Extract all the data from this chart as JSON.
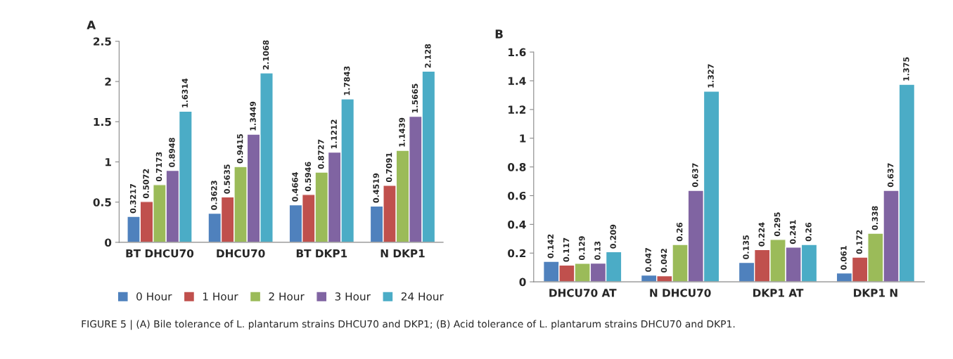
{
  "chart_data": [
    {
      "type": "bar",
      "title": "A",
      "categories": [
        "BT DHCU70",
        "DHCU70",
        "BT DKP1",
        "N DKP1"
      ],
      "series": [
        {
          "name": "0 Hour",
          "color": "#4f81bd",
          "values": [
            0.3217,
            0.3623,
            0.4664,
            0.4519
          ]
        },
        {
          "name": "1 Hour",
          "color": "#c0504d",
          "values": [
            0.5072,
            0.5635,
            0.5946,
            0.7091
          ]
        },
        {
          "name": "2 Hour",
          "color": "#9bbb59",
          "values": [
            0.7173,
            0.9415,
            0.8727,
            1.1439
          ]
        },
        {
          "name": "3 Hour",
          "color": "#8064a2",
          "values": [
            0.8948,
            1.3449,
            1.1212,
            1.5665
          ]
        },
        {
          "name": "24 Hour",
          "color": "#4bacc6",
          "values": [
            1.6314,
            2.1068,
            1.7843,
            2.128
          ]
        }
      ],
      "ylim": [
        0,
        2.5
      ],
      "yticks": [
        0,
        0.5,
        1,
        1.5,
        2,
        2.5
      ],
      "data_labels": true,
      "legend": "bottom",
      "grid": false,
      "annotations": [
        "FIGURE 5 | (A) Bile tolerance of L. plantarum strains DHCU70 and DKP1; (B) Acid tolerance of L. plantarum strains DHCU70 and DKP1."
      ]
    },
    {
      "type": "bar",
      "title": "B",
      "categories": [
        "DHCU70 AT",
        "N DHCU70",
        "DKP1 AT",
        "DKP1 N"
      ],
      "series": [
        {
          "color": "#4f81bd",
          "values": [
            0.142,
            0.047,
            0.135,
            0.061
          ]
        },
        {
          "color": "#c0504d",
          "values": [
            0.117,
            0.042,
            0.224,
            0.172
          ]
        },
        {
          "color": "#9bbb59",
          "values": [
            0.129,
            0.26,
            0.295,
            0.338
          ]
        },
        {
          "color": "#8064a2",
          "values": [
            0.13,
            0.637,
            0.241,
            0.637
          ]
        },
        {
          "color": "#4bacc6",
          "values": [
            0.209,
            1.327,
            0.26,
            1.375
          ]
        }
      ],
      "ylim": [
        0,
        1.6
      ],
      "yticks": [
        0,
        0.2,
        0.4,
        0.6,
        0.8,
        1,
        1.2,
        1.4,
        1.6
      ],
      "data_labels": true,
      "legend": false,
      "grid": false
    }
  ]
}
